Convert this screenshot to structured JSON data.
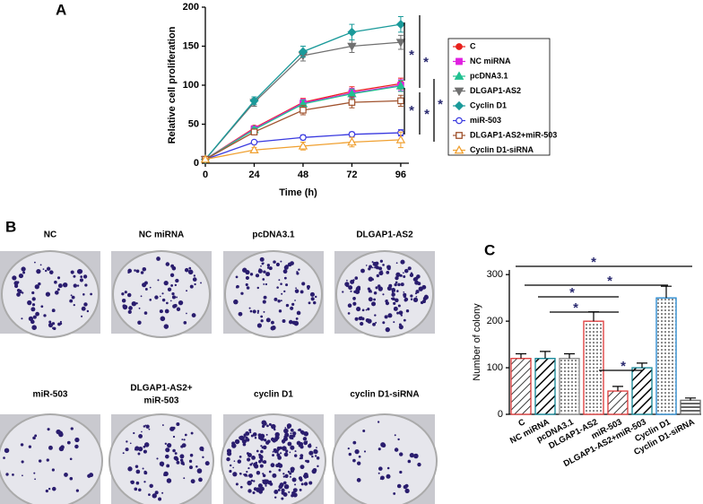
{
  "panels": [
    "A",
    "B",
    "C"
  ],
  "photos": [
    {
      "caption": [
        "NC"
      ]
    },
    {
      "caption": [
        "NC miRNA"
      ]
    },
    {
      "caption": [
        "pcDNA3.1"
      ]
    },
    {
      "caption": [
        "DLGAP1-AS2"
      ]
    },
    {
      "caption": [
        "miR-503"
      ]
    },
    {
      "caption": [
        "DLGAP1-AS2+",
        "miR-503"
      ]
    },
    {
      "caption": [
        "cyclin D1"
      ]
    },
    {
      "caption": [
        "cyclin D1-siRNA"
      ]
    }
  ],
  "chart_data": [
    {
      "type": "line",
      "xlabel": "Time (h)",
      "ylabel": "Relative cell proliferation",
      "x": [
        0,
        24,
        48,
        72,
        96
      ],
      "xlim": [
        0,
        100
      ],
      "xticks": [
        0,
        24,
        48,
        72,
        96
      ],
      "ylim": [
        0,
        200
      ],
      "yticks": [
        0,
        50,
        100,
        150,
        200
      ],
      "legend": "right",
      "series": [
        {
          "name": "C",
          "color": "#e8211c",
          "marker": "circle",
          "values": [
            5,
            45,
            78,
            92,
            102
          ],
          "errors": [
            1,
            3,
            5,
            6,
            7
          ]
        },
        {
          "name": "NC miRNA",
          "color": "#e020e0",
          "marker": "square",
          "values": [
            5,
            44,
            77,
            90,
            100
          ],
          "errors": [
            1,
            3,
            5,
            6,
            7
          ]
        },
        {
          "name": "pcDNA3.1",
          "color": "#20c090",
          "marker": "triangle",
          "values": [
            5,
            43,
            76,
            89,
            99
          ],
          "errors": [
            1,
            3,
            5,
            6,
            7
          ]
        },
        {
          "name": "DLGAP1-AS2",
          "color": "#707070",
          "marker": "triangle-down",
          "values": [
            5,
            78,
            138,
            150,
            155
          ],
          "errors": [
            1,
            5,
            7,
            8,
            9
          ]
        },
        {
          "name": "Cyclin D1",
          "color": "#1a9a9a",
          "marker": "diamond",
          "values": [
            5,
            80,
            143,
            168,
            178
          ],
          "errors": [
            1,
            5,
            7,
            10,
            10
          ]
        },
        {
          "name": "miR-503",
          "color": "#3a3ae0",
          "marker": "circle-open",
          "values": [
            5,
            27,
            33,
            37,
            39
          ],
          "errors": [
            1,
            2,
            3,
            3,
            4
          ]
        },
        {
          "name": "DLGAP1-AS2+miR-503",
          "color": "#a0522d",
          "marker": "square-open",
          "values": [
            5,
            40,
            68,
            78,
            80
          ],
          "errors": [
            1,
            3,
            6,
            7,
            7
          ]
        },
        {
          "name": "Cyclin D1-siRNA",
          "color": "#f0a030",
          "marker": "triangle-open",
          "values": [
            5,
            17,
            22,
            27,
            30
          ],
          "errors": [
            1,
            3,
            5,
            6,
            10
          ]
        }
      ],
      "annotations": [
        "*",
        "*",
        "*",
        "*",
        "*"
      ]
    },
    {
      "type": "bar",
      "ylabel": "Number of colony",
      "categories": [
        "C",
        "NC miRNA",
        "pcDNA3.1",
        "DLGAP1-AS2",
        "miR-503",
        "DLGAP1-AS2+miR-503",
        "Cyclin D1",
        "Cyclin D1-siRNA"
      ],
      "values": [
        120,
        120,
        120,
        200,
        50,
        100,
        250,
        30
      ],
      "errors": [
        10,
        15,
        10,
        20,
        10,
        10,
        25,
        5
      ],
      "colors": [
        "#e04040",
        "#1a8a9a",
        "#909090",
        "#e04040",
        "#e04040",
        "#1a8a9a",
        "#2a8ad0",
        "#707070"
      ],
      "hatches": [
        "diagonal",
        "stripes",
        "dots",
        "dots",
        "diagonal",
        "stripes",
        "dots",
        "horizontal"
      ],
      "ylim": [
        0,
        310
      ],
      "yticks": [
        0,
        100,
        200,
        300
      ],
      "annotations": [
        "*",
        "*",
        "*",
        "*",
        "*"
      ]
    }
  ]
}
